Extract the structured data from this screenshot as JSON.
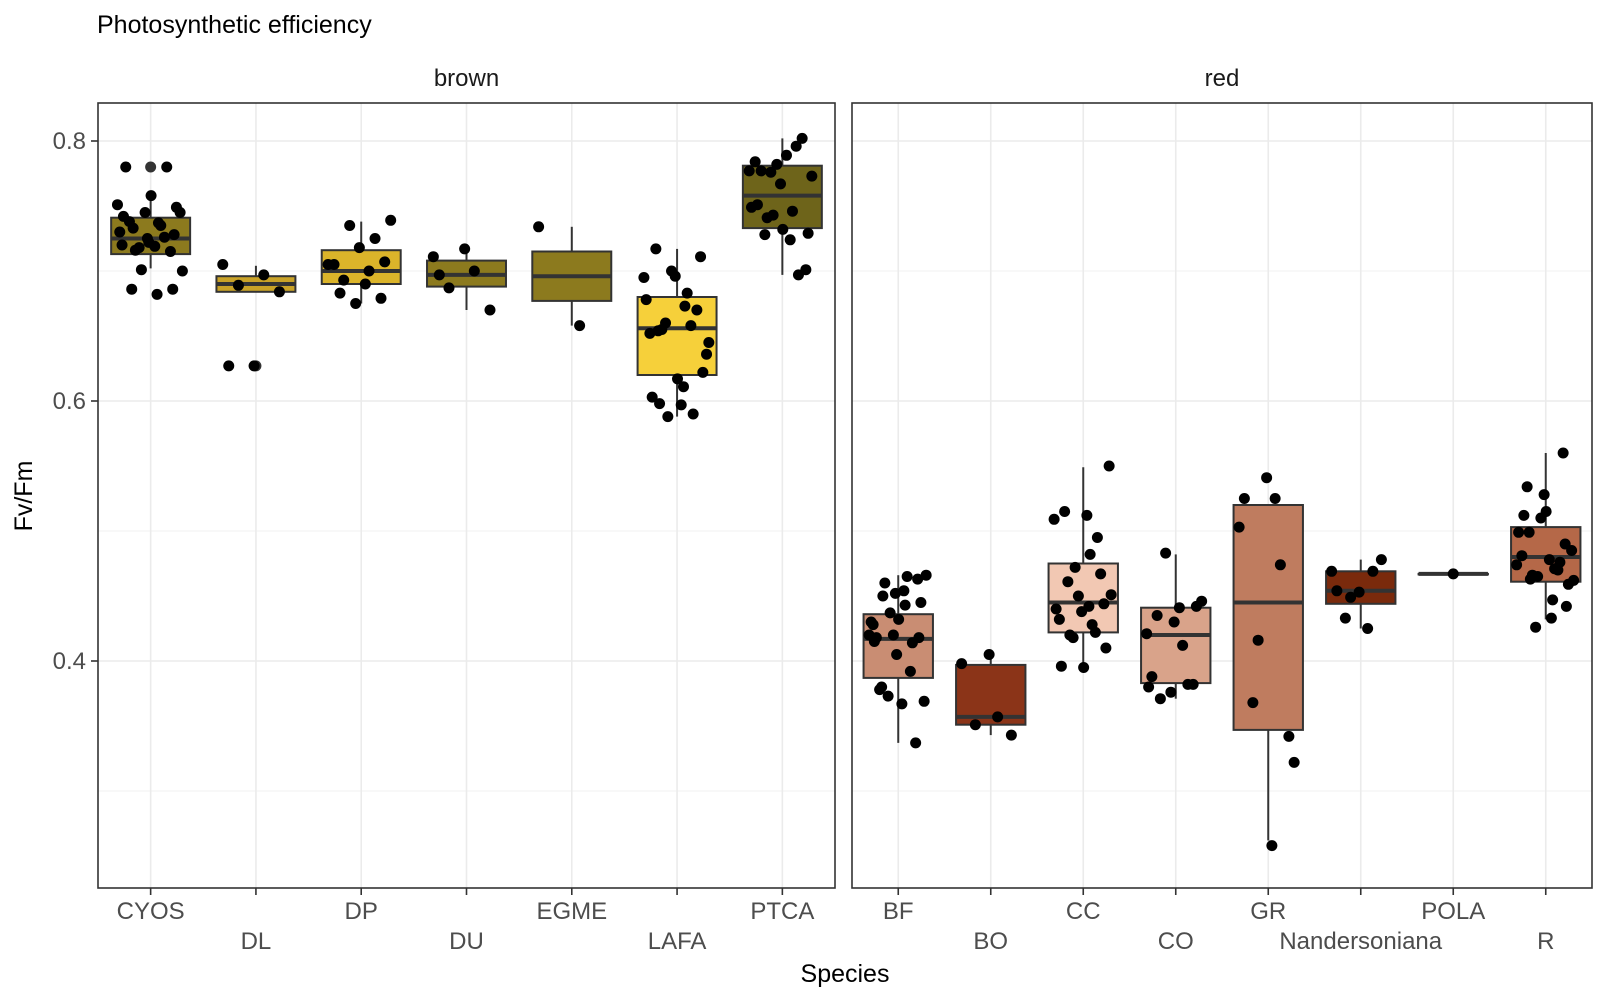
{
  "chart_data": {
    "type": "box",
    "title": "Photosynthetic efficiency",
    "xlabel": "Species",
    "ylabel": "Fv/Fm",
    "ylim": [
      0.23,
      0.83
    ],
    "yticks": [
      0.4,
      0.6,
      0.8
    ],
    "ytick_labels": [
      "0.4",
      "0.6",
      "0.8"
    ],
    "grid": true,
    "legend": "none",
    "facets": [
      {
        "label": "brown",
        "groups": [
          {
            "category": "CYOS",
            "color": "#8c7a1e",
            "box": {
              "q1": 0.713,
              "median": 0.725,
              "q3": 0.741,
              "whisker_low": 0.702,
              "whisker_high": 0.757
            },
            "outliers": [
              0.78
            ],
            "points": [
              0.751,
              0.737,
              0.733,
              0.728,
              0.722,
              0.742,
              0.726,
              0.718,
              0.745,
              0.719,
              0.738,
              0.715,
              0.745,
              0.73,
              0.735,
              0.716,
              0.749,
              0.758,
              0.78,
              0.78,
              0.701,
              0.7,
              0.682,
              0.686,
              0.686,
              0.725,
              0.72
            ]
          },
          {
            "category": "DL",
            "color": "#c9a227",
            "box": {
              "q1": 0.684,
              "median": 0.69,
              "q3": 0.696,
              "whisker_low": 0.684,
              "whisker_high": 0.704
            },
            "outliers": [
              0.627
            ],
            "points": [
              0.705,
              0.697,
              0.689,
              0.684,
              0.627,
              0.627
            ]
          },
          {
            "category": "DP",
            "color": "#dbb42a",
            "box": {
              "q1": 0.69,
              "median": 0.7,
              "q3": 0.716,
              "whisker_low": 0.675,
              "whisker_high": 0.738
            },
            "outliers": [],
            "points": [
              0.705,
              0.7,
              0.693,
              0.707,
              0.718,
              0.705,
              0.725,
              0.735,
              0.739,
              0.69,
              0.683,
              0.679,
              0.675
            ]
          },
          {
            "category": "DU",
            "color": "#8c7a1e",
            "box": {
              "q1": 0.688,
              "median": 0.697,
              "q3": 0.708,
              "whisker_low": 0.67,
              "whisker_high": 0.717
            },
            "outliers": [],
            "points": [
              0.711,
              0.7,
              0.687,
              0.67,
              0.717,
              0.697
            ]
          },
          {
            "category": "EGME",
            "color": "#8c7a1e",
            "box": {
              "q1": 0.677,
              "median": 0.696,
              "q3": 0.715,
              "whisker_low": 0.658,
              "whisker_high": 0.734
            },
            "outliers": [],
            "points": [
              0.734,
              0.658
            ]
          },
          {
            "category": "LAFA",
            "color": "#f6d03a",
            "box": {
              "q1": 0.62,
              "median": 0.656,
              "q3": 0.68,
              "whisker_low": 0.588,
              "whisker_high": 0.717
            },
            "outliers": [],
            "points": [
              0.695,
              0.673,
              0.598,
              0.711,
              0.696,
              0.652,
              0.658,
              0.66,
              0.636,
              0.597,
              0.717,
              0.67,
              0.7,
              0.678,
              0.683,
              0.655,
              0.622,
              0.617,
              0.603,
              0.59,
              0.588,
              0.645,
              0.611,
              0.654
            ]
          },
          {
            "category": "PTCA",
            "color": "#6e641a",
            "box": {
              "q1": 0.733,
              "median": 0.758,
              "q3": 0.781,
              "whisker_low": 0.697,
              "whisker_high": 0.802
            },
            "outliers": [],
            "points": [
              0.777,
              0.724,
              0.728,
              0.701,
              0.767,
              0.784,
              0.796,
              0.776,
              0.773,
              0.789,
              0.777,
              0.802,
              0.782,
              0.749,
              0.746,
              0.741,
              0.729,
              0.732,
              0.751,
              0.697,
              0.743
            ]
          }
        ]
      },
      {
        "label": "red",
        "groups": [
          {
            "category": "BF",
            "color": "#c98d73",
            "box": {
              "q1": 0.387,
              "median": 0.417,
              "q3": 0.436,
              "whisker_low": 0.337,
              "whisker_high": 0.466
            },
            "outliers": [],
            "points": [
              0.42,
              0.443,
              0.45,
              0.418,
              0.405,
              0.415,
              0.392,
              0.373,
              0.369,
              0.367,
              0.378,
              0.337,
              0.42,
              0.43,
              0.465,
              0.46,
              0.445,
              0.432,
              0.418,
              0.414,
              0.437,
              0.466,
              0.454,
              0.38,
              0.463,
              0.452,
              0.428
            ]
          },
          {
            "category": "BO",
            "color": "#8b3418",
            "box": {
              "q1": 0.351,
              "median": 0.357,
              "q3": 0.397,
              "whisker_low": 0.343,
              "whisker_high": 0.404
            },
            "outliers": [],
            "points": [
              0.398,
              0.357,
              0.351,
              0.343,
              0.405
            ]
          },
          {
            "category": "CC",
            "color": "#f2c8b3",
            "box": {
              "q1": 0.422,
              "median": 0.445,
              "q3": 0.475,
              "whisker_low": 0.394,
              "whisker_high": 0.549
            },
            "outliers": [],
            "points": [
              0.509,
              0.482,
              0.461,
              0.444,
              0.438,
              0.432,
              0.422,
              0.418,
              0.55,
              0.512,
              0.515,
              0.467,
              0.45,
              0.44,
              0.428,
              0.42,
              0.41,
              0.395,
              0.396,
              0.495,
              0.472,
              0.451,
              0.442
            ]
          },
          {
            "category": "CO",
            "color": "#d9a38a",
            "box": {
              "q1": 0.383,
              "median": 0.42,
              "q3": 0.441,
              "whisker_low": 0.371,
              "whisker_high": 0.482
            },
            "outliers": [],
            "points": [
              0.421,
              0.412,
              0.371,
              0.442,
              0.43,
              0.388,
              0.382,
              0.483,
              0.446,
              0.441,
              0.435,
              0.382,
              0.376,
              0.38
            ]
          },
          {
            "category": "GR",
            "color": "#bf7c5f",
            "box": {
              "q1": 0.347,
              "median": 0.445,
              "q3": 0.52,
              "whisker_low": 0.262,
              "whisker_high": 0.52
            },
            "outliers": [],
            "points": [
              0.503,
              0.525,
              0.368,
              0.342,
              0.541,
              0.525,
              0.474,
              0.416,
              0.322,
              0.258
            ]
          },
          {
            "category": "Nandersoniana",
            "color": "#7a2a0c",
            "box": {
              "q1": 0.444,
              "median": 0.454,
              "q3": 0.469,
              "whisker_low": 0.425,
              "whisker_high": 0.478
            },
            "outliers": [],
            "points": [
              0.469,
              0.425,
              0.433,
              0.478,
              0.453,
              0.454,
              0.469,
              0.449
            ]
          },
          {
            "category": "POLA",
            "color": "#9e4a2a",
            "box": {
              "q1": 0.467,
              "median": 0.467,
              "q3": 0.467,
              "whisker_low": 0.467,
              "whisker_high": 0.467
            },
            "outliers": [],
            "points": [
              0.467
            ]
          },
          {
            "category": "R",
            "color": "#b56848",
            "box": {
              "q1": 0.461,
              "median": 0.48,
              "q3": 0.503,
              "whisker_low": 0.432,
              "whisker_high": 0.56
            },
            "outliers": [],
            "points": [
              0.474,
              0.447,
              0.463,
              0.442,
              0.528,
              0.481,
              0.47,
              0.426,
              0.485,
              0.478,
              0.534,
              0.56,
              0.51,
              0.499,
              0.471,
              0.466,
              0.459,
              0.515,
              0.512,
              0.476,
              0.465,
              0.462,
              0.433,
              0.499,
              0.49
            ]
          }
        ]
      }
    ]
  }
}
